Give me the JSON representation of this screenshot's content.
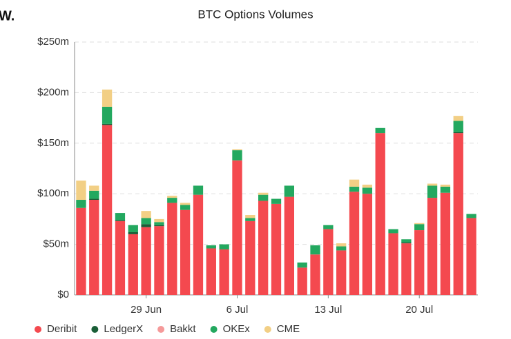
{
  "logo": "W.",
  "chart_data": {
    "type": "stacked_bar",
    "title": "BTC Options Volumes",
    "categories": [
      null,
      null,
      null,
      null,
      null,
      "29 Jun",
      null,
      null,
      null,
      null,
      null,
      null,
      "6 Jul",
      null,
      null,
      null,
      null,
      null,
      null,
      "13 Jul",
      null,
      null,
      null,
      null,
      null,
      null,
      "20 Jul",
      null,
      null,
      null,
      null
    ],
    "series": [
      {
        "name": "Deribit",
        "color": "#f4494f",
        "values": [
          86,
          94,
          168,
          73,
          60,
          67,
          68,
          91,
          84,
          99,
          46,
          45,
          133,
          73,
          93,
          90,
          97,
          27,
          40,
          65,
          44,
          102,
          100,
          160,
          61,
          51,
          64,
          96,
          101,
          160,
          76
        ]
      },
      {
        "name": "LedgerX",
        "color": "#1a5e37",
        "values": [
          0,
          1,
          1,
          1,
          2,
          3,
          1,
          0,
          0,
          0,
          0,
          0,
          0,
          0,
          0,
          0,
          0,
          0,
          0,
          0,
          0,
          0,
          0,
          0,
          0,
          1,
          0,
          0,
          0,
          1,
          0
        ]
      },
      {
        "name": "Bakkt",
        "color": "#f59a9a",
        "values": [
          0,
          0,
          0,
          0,
          0,
          0,
          0,
          0,
          0,
          0,
          0,
          0,
          0,
          0,
          0,
          0,
          0,
          0,
          0,
          0,
          0,
          0,
          0,
          0,
          0,
          0,
          0,
          0,
          0,
          0,
          0
        ]
      },
      {
        "name": "OKEx",
        "color": "#23a85f",
        "values": [
          8,
          8,
          17,
          7,
          7,
          6,
          3,
          5,
          5,
          9,
          3,
          5,
          10,
          3,
          6,
          5,
          11,
          5,
          9,
          4,
          4,
          5,
          6,
          5,
          4,
          3,
          6,
          12,
          6,
          11,
          4
        ]
      },
      {
        "name": "CME",
        "color": "#f2cf85",
        "values": [
          19,
          5,
          17,
          0,
          0,
          7,
          3,
          2,
          2,
          0,
          0,
          0,
          1,
          3,
          2,
          0,
          0,
          0,
          0,
          0,
          3,
          7,
          3,
          0,
          0,
          0,
          1,
          2,
          2,
          5,
          0
        ]
      }
    ],
    "ylim": [
      0,
      250
    ],
    "yticks": [
      {
        "value": 0,
        "label": "$0"
      },
      {
        "value": 50,
        "label": "$50m"
      },
      {
        "value": 100,
        "label": "$100m"
      },
      {
        "value": 150,
        "label": "$150m"
      },
      {
        "value": 200,
        "label": "$200m"
      },
      {
        "value": 250,
        "label": "$250m"
      }
    ],
    "grid": true,
    "legend": "bottom-left"
  }
}
